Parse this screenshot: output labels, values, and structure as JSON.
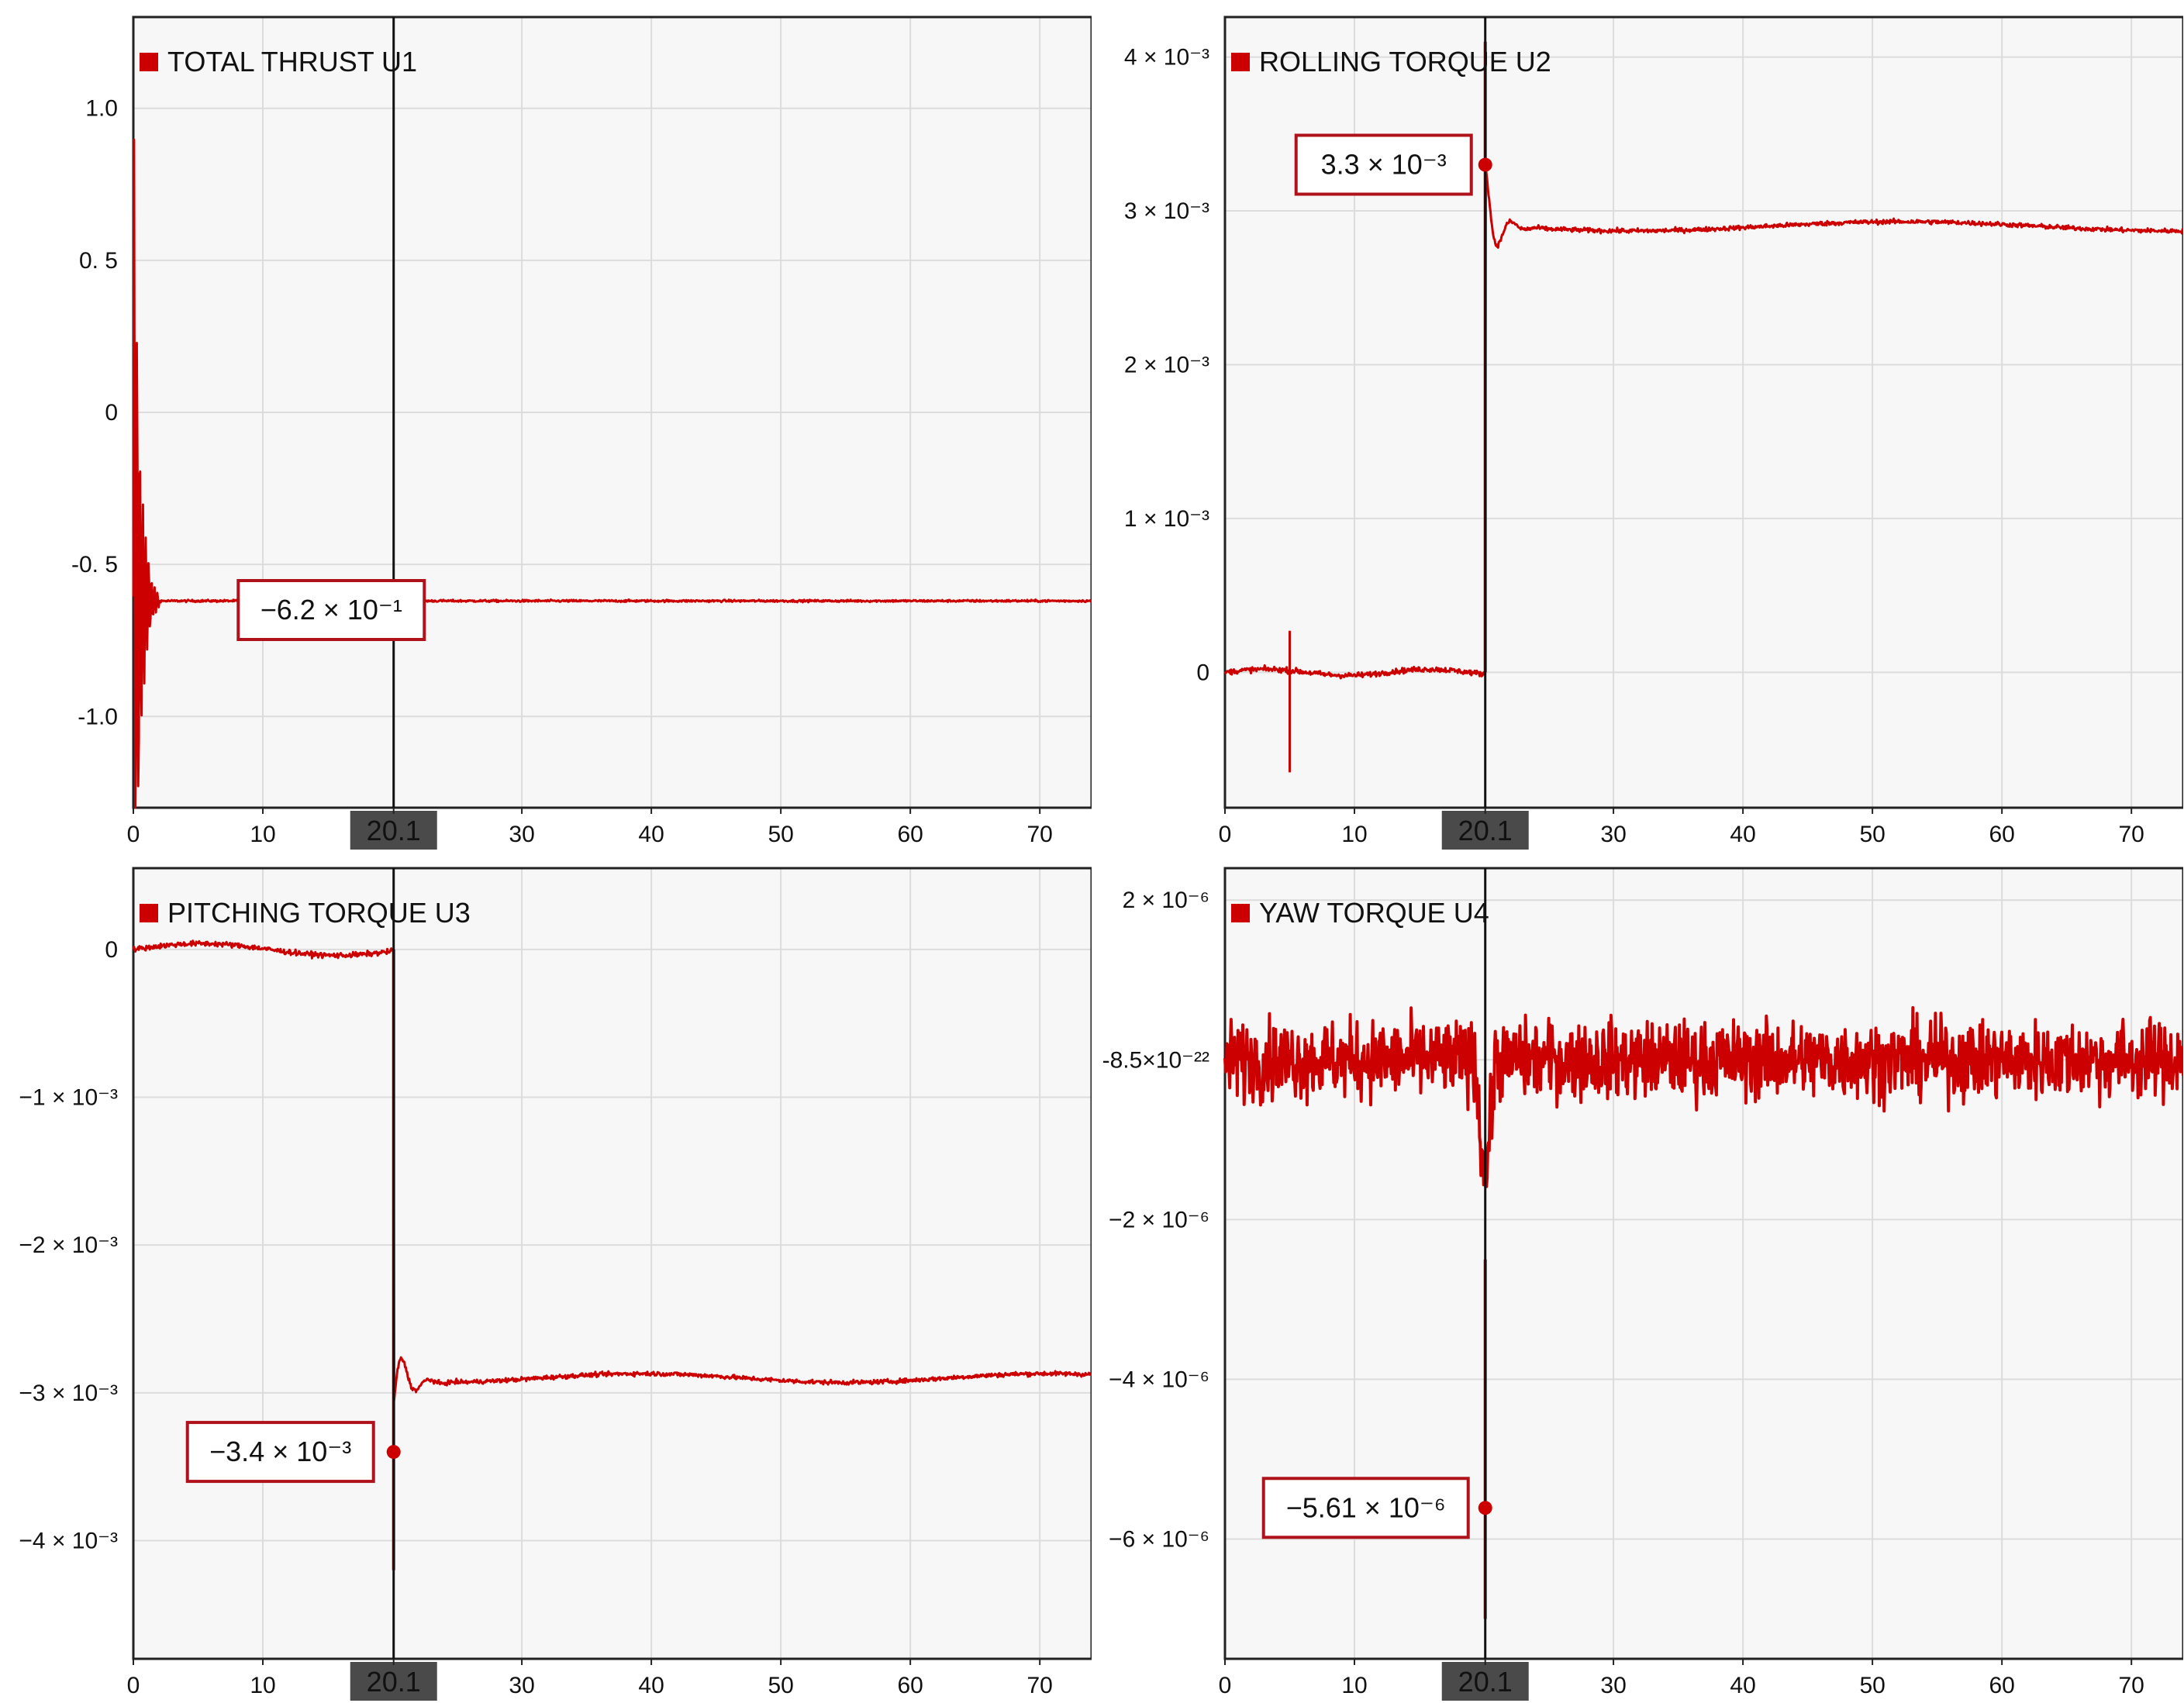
{
  "chart_data": [
    {
      "type": "line",
      "series": [
        {
          "name": "TOTAL THRUST U1",
          "color": "#cc0000"
        }
      ],
      "x_ticks": [
        "0",
        "10",
        "20.1",
        "30",
        "40",
        "50",
        "60",
        "70"
      ],
      "xlim": [
        0,
        74
      ],
      "y_ticks": [
        "1.0",
        "0. 5",
        "0",
        "-0. 5",
        "-1.0"
      ],
      "ylim": [
        -1.3,
        1.3
      ],
      "marker_x": 20.1,
      "marker_label": "20.1",
      "steady_value": -0.62,
      "callout": "−6.2 × 10⁻¹",
      "grid": true
    },
    {
      "type": "line",
      "series": [
        {
          "name": "ROLLING TORQUE U2",
          "color": "#cc0000"
        }
      ],
      "x_ticks": [
        "0",
        "10",
        "20.1",
        "30",
        "40",
        "50",
        "60",
        "70"
      ],
      "xlim": [
        0,
        74
      ],
      "y_ticks": [
        "4 × 10⁻³",
        "3 × 10⁻³",
        "2 × 10⁻³",
        "1 × 10⁻³",
        "0"
      ],
      "ylim": [
        -0.00088,
        0.00426
      ],
      "marker_x": 20.1,
      "marker_label": "20.1",
      "before_value": 0.0,
      "steady_value": 0.0029,
      "point_value": 0.0033,
      "callout": "3.3 × 10⁻³",
      "grid": true
    },
    {
      "type": "line",
      "series": [
        {
          "name": "PITCHING TORQUE U3",
          "color": "#cc0000"
        }
      ],
      "x_ticks": [
        "0",
        "10",
        "20.1",
        "30",
        "40",
        "50",
        "60",
        "70"
      ],
      "xlim": [
        0,
        74
      ],
      "y_ticks": [
        "0",
        "−1 × 10⁻³",
        "−2 × 10⁻³",
        "−3 × 10⁻³",
        "−4 × 10⁻³"
      ],
      "ylim": [
        -0.0048,
        0.00055
      ],
      "marker_x": 20.1,
      "marker_label": "20.1",
      "before_value": 0.0,
      "steady_value": -0.0029,
      "point_value": -0.0034,
      "callout": "−3.4 × 10⁻³",
      "grid": true
    },
    {
      "type": "line",
      "series": [
        {
          "name": "YAW TORQUE  U4",
          "color": "#cc0000"
        }
      ],
      "x_ticks": [
        "0",
        "10",
        "20.1",
        "30",
        "40",
        "50",
        "60",
        "70"
      ],
      "xlim": [
        0,
        74
      ],
      "y_ticks": [
        "2 × 10⁻⁶",
        "-8.5×10⁻²²",
        "−2 × 10⁻⁶",
        "−4 × 10⁻⁶",
        "−6 × 10⁻⁶"
      ],
      "y_tick_values": [
        2e-06,
        0,
        -2e-06,
        -4e-06,
        -6e-06
      ],
      "ylim": [
        -7.5e-06,
        2.4e-06
      ],
      "marker_x": 20.1,
      "marker_label": "20.1",
      "noise_amplitude": 1.1e-06,
      "point_value": -5.61e-06,
      "callout": "−5.61 × 10⁻⁶",
      "grid": true
    }
  ]
}
